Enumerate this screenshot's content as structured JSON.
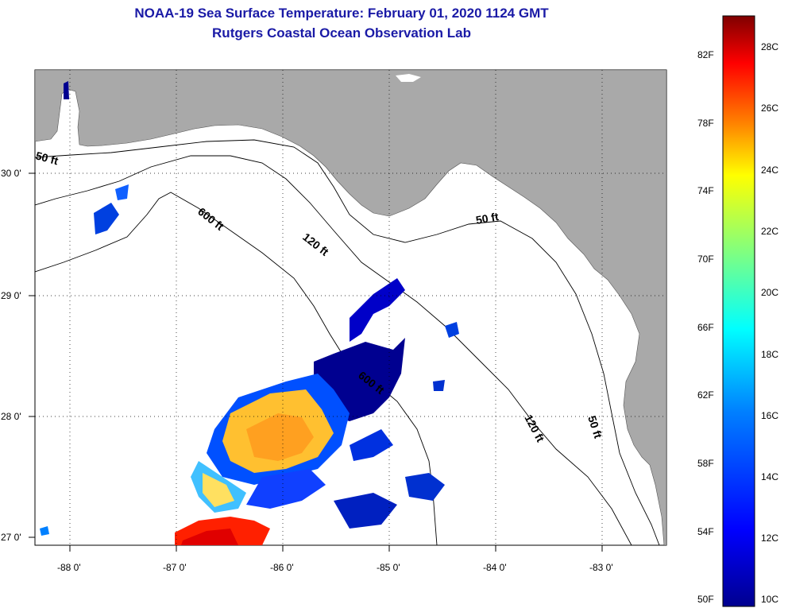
{
  "title": "NOAA-19 Sea Surface Temperature:  February 01, 2020 1124 GMT",
  "subtitle": "Rutgers Coastal Ocean Observation Lab",
  "map": {
    "lat_labels": [
      "30 0'",
      "29 0'",
      "28 0'",
      "27 0'"
    ],
    "lon_labels": [
      "-88 0'",
      "-87 0'",
      "-86 0'",
      "-85 0'",
      "-84 0'",
      "-83 0'"
    ],
    "contour_labels": [
      "50 ft",
      "600 ft",
      "120 ft",
      "50 ft",
      "600 ft",
      "120 ft",
      "50 ft"
    ],
    "land_color": "#a9a9a9",
    "ocean_color": "#ffffff"
  },
  "colorbar": {
    "f_labels": [
      "82F",
      "78F",
      "74F",
      "70F",
      "66F",
      "62F",
      "58F",
      "54F",
      "50F"
    ],
    "c_labels": [
      "28C",
      "26C",
      "24C",
      "22C",
      "20C",
      "18C",
      "16C",
      "14C",
      "12C",
      "10C"
    ],
    "colors": [
      "#7f0000",
      "#ff0000",
      "#ff8000",
      "#ffff00",
      "#80ff80",
      "#00ffff",
      "#0080ff",
      "#0000ff",
      "#00008f"
    ]
  }
}
